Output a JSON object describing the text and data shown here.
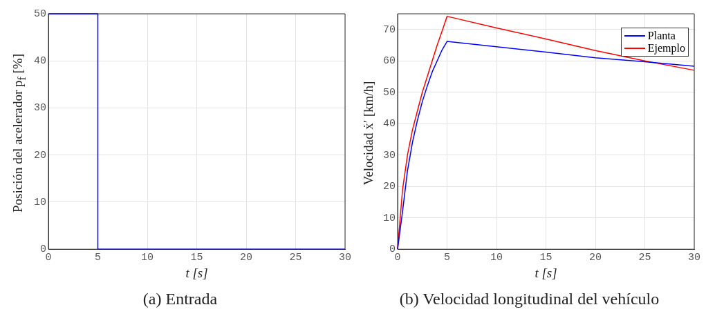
{
  "chart_data": [
    {
      "type": "line",
      "title": "(a) Entrada",
      "xlabel": "t [s]",
      "ylabel": "Posición del acelerador p$_{f}$ [%]",
      "x": [
        0,
        5,
        5,
        30
      ],
      "series": [
        {
          "color": "#0000ff",
          "values": [
            50,
            50,
            0,
            0
          ]
        }
      ],
      "xlim": [
        0,
        30
      ],
      "xticks": [
        0,
        5,
        10,
        15,
        20,
        25,
        30
      ],
      "ylim": [
        0,
        50
      ],
      "yticks": [
        0,
        10,
        20,
        30,
        40,
        50
      ],
      "grid": true,
      "marker": "none"
    },
    {
      "type": "line",
      "title": "(b) Velocidad longitudinal del vehículo",
      "xlabel": "t [s]",
      "ylabel": "Velocidad ẋ′ [km/h]",
      "x": [
        0,
        0.5,
        1,
        1.5,
        2,
        2.5,
        3,
        3.5,
        4,
        4.5,
        5,
        10,
        15,
        20,
        25,
        30
      ],
      "series": [
        {
          "name": "Planta",
          "color": "#0000ff",
          "values": [
            0,
            12,
            25,
            34,
            41,
            47,
            52,
            56.5,
            60,
            63.5,
            66.2,
            64.5,
            62.8,
            61,
            59.7,
            58.3
          ]
        },
        {
          "name": "Ejemplo",
          "color": "#ff0000",
          "values": [
            0,
            19,
            30,
            38,
            44,
            50,
            55,
            60,
            65,
            69.5,
            74.2,
            70.5,
            67,
            63.3,
            60,
            57
          ]
        }
      ],
      "xlim": [
        0,
        30
      ],
      "xticks": [
        0,
        5,
        10,
        15,
        20,
        25,
        30
      ],
      "ylim": [
        0,
        75
      ],
      "yticks": [
        0,
        10,
        20,
        30,
        40,
        50,
        60,
        70
      ],
      "grid": true,
      "legend": "top right",
      "marker": "none"
    }
  ]
}
